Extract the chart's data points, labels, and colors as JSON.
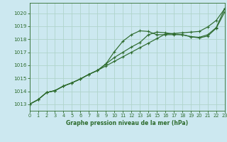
{
  "title": "Graphe pression niveau de la mer (hPa)",
  "background_color": "#cce8f0",
  "grid_color": "#b0d4cc",
  "line_color": "#2d6b2d",
  "x_min": 0,
  "x_max": 23,
  "y_min": 1012.5,
  "y_max": 1020.8,
  "y_ticks": [
    1013,
    1014,
    1015,
    1016,
    1017,
    1018,
    1019,
    1020
  ],
  "x_ticks": [
    0,
    1,
    2,
    3,
    4,
    5,
    6,
    7,
    8,
    9,
    10,
    11,
    12,
    13,
    14,
    15,
    16,
    17,
    18,
    19,
    20,
    21,
    22,
    23
  ],
  "series1_x": [
    0,
    1,
    2,
    3,
    4,
    5,
    6,
    7,
    8,
    9,
    10,
    11,
    12,
    13,
    14,
    15,
    16,
    17,
    18,
    19,
    20,
    21,
    22,
    23
  ],
  "series1_y": [
    1013.0,
    1013.35,
    1013.9,
    1014.05,
    1014.4,
    1014.65,
    1014.95,
    1015.3,
    1015.6,
    1016.1,
    1016.6,
    1017.0,
    1017.4,
    1017.75,
    1018.35,
    1018.55,
    1018.5,
    1018.4,
    1018.35,
    1018.2,
    1018.1,
    1018.25,
    1018.85,
    1020.1
  ],
  "series2_x": [
    0,
    1,
    2,
    3,
    4,
    5,
    6,
    7,
    8,
    9,
    10,
    11,
    12,
    13,
    14,
    15,
    16,
    17,
    18,
    19,
    20,
    21,
    22,
    23
  ],
  "series2_y": [
    1013.0,
    1013.35,
    1013.9,
    1014.05,
    1014.4,
    1014.65,
    1014.95,
    1015.3,
    1015.6,
    1016.1,
    1017.05,
    1017.85,
    1018.35,
    1018.65,
    1018.6,
    1018.35,
    1018.35,
    1018.35,
    1018.35,
    1018.2,
    1018.15,
    1018.35,
    1018.9,
    1020.35
  ],
  "series3_x": [
    0,
    1,
    2,
    3,
    4,
    5,
    6,
    7,
    8,
    9,
    10,
    11,
    12,
    13,
    14,
    15,
    16,
    17,
    18,
    19,
    20,
    21,
    22,
    23
  ],
  "series3_y": [
    1013.0,
    1013.35,
    1013.9,
    1014.05,
    1014.4,
    1014.65,
    1014.95,
    1015.3,
    1015.6,
    1015.95,
    1016.3,
    1016.65,
    1017.0,
    1017.35,
    1017.7,
    1018.05,
    1018.4,
    1018.45,
    1018.5,
    1018.55,
    1018.6,
    1018.95,
    1019.45,
    1020.35
  ]
}
